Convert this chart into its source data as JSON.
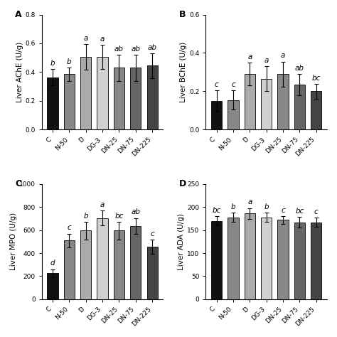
{
  "categories": [
    "C",
    "N-50",
    "D",
    "DG-3",
    "DN-25",
    "DN-75",
    "DN-225"
  ],
  "bar_colors": [
    "#111111",
    "#888888",
    "#aaaaaa",
    "#d0d0d0",
    "#888888",
    "#666666",
    "#444444"
  ],
  "panels": [
    {
      "label": "A",
      "ylabel": "Liver AChE (U/g)",
      "ylim": [
        0,
        0.8
      ],
      "yticks": [
        0.0,
        0.2,
        0.4,
        0.6,
        0.8
      ],
      "values": [
        0.365,
        0.385,
        0.505,
        0.505,
        0.43,
        0.43,
        0.445
      ],
      "errors": [
        0.055,
        0.045,
        0.09,
        0.085,
        0.09,
        0.09,
        0.085
      ],
      "sig_labels": [
        "b",
        "b",
        "a",
        "a",
        "ab",
        "ab",
        "ab"
      ]
    },
    {
      "label": "B",
      "ylabel": "Liver BChE (U/g)",
      "ylim": [
        0,
        0.6
      ],
      "yticks": [
        0.0,
        0.2,
        0.4,
        0.6
      ],
      "values": [
        0.15,
        0.155,
        0.29,
        0.265,
        0.29,
        0.235,
        0.2
      ],
      "errors": [
        0.055,
        0.05,
        0.06,
        0.065,
        0.065,
        0.055,
        0.038
      ],
      "sig_labels": [
        "c",
        "c",
        "a",
        "a",
        "a",
        "ab",
        "bc"
      ]
    },
    {
      "label": "C",
      "ylabel": "Liver MPO (U/g)",
      "ylim": [
        0,
        1000
      ],
      "yticks": [
        0,
        200,
        400,
        600,
        800,
        1000
      ],
      "values": [
        225,
        510,
        595,
        705,
        595,
        635,
        455
      ],
      "errors": [
        35,
        60,
        75,
        65,
        75,
        70,
        60
      ],
      "sig_labels": [
        "d",
        "c",
        "b",
        "a",
        "bc",
        "ab",
        "c"
      ]
    },
    {
      "label": "D",
      "ylabel": "Liver ADA (U/g)",
      "ylim": [
        0,
        250
      ],
      "yticks": [
        0,
        50,
        100,
        150,
        200,
        250
      ],
      "values": [
        170,
        178,
        186,
        178,
        172,
        167,
        167
      ],
      "errors": [
        10,
        10,
        12,
        10,
        8,
        12,
        10
      ],
      "sig_labels": [
        "bc",
        "b",
        "a",
        "b",
        "c",
        "bc",
        "c"
      ]
    }
  ],
  "background_color": "#ffffff",
  "fontsize_label": 7.5,
  "fontsize_tick": 6.5,
  "fontsize_panel": 9,
  "fontsize_sig": 7.5
}
